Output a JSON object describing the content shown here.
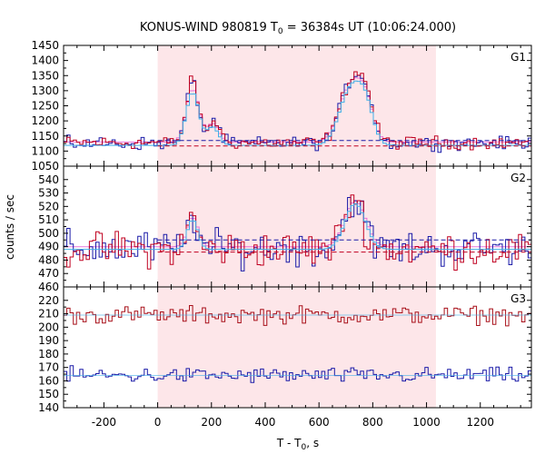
{
  "chart_data": {
    "type": "line",
    "title": "KONUS-WIND 980819 T",
    "title_sub": "0",
    "title_rest": " = 36384s UT (10:06:24.000)",
    "xlabel": "T - T",
    "xlabel_sub": "0",
    "xlabel_rest": ", s",
    "ylabel": "counts / sec",
    "xlim": [
      -350,
      1390
    ],
    "x_ticks": [
      -200,
      0,
      200,
      400,
      600,
      800,
      1000,
      1200
    ],
    "x_tick_labels": [
      "-200",
      "0",
      "200",
      "400",
      "600",
      "800",
      "1000",
      "1200"
    ],
    "highlight_interval": [
      0,
      1035
    ],
    "colors": {
      "data_g12": "#1a1aa8",
      "data_g3": "#a8101a",
      "fit": "#c00020",
      "model": "#e040d0",
      "smooth": "#40b0e8",
      "shade": "#fde6e9"
    },
    "panels": [
      {
        "name": "G1",
        "ylim": [
          1050,
          1450
        ],
        "y_ticks": [
          1050,
          1100,
          1150,
          1200,
          1250,
          1300,
          1350,
          1400,
          1450
        ],
        "y_tick_labels": [
          "1050",
          "1100",
          "1150",
          "1200",
          "1250",
          "1300",
          "1350",
          "1400",
          "1450"
        ],
        "background_levels": [
          1135,
          1117
        ],
        "baseline": 1128,
        "noise": 13,
        "pulses": [
          {
            "center": 130,
            "amplitude": 205,
            "width": 22
          },
          {
            "center": 210,
            "amplitude": 75,
            "width": 20
          },
          {
            "center": 720,
            "amplitude": 200,
            "width": 40
          },
          {
            "center": 775,
            "amplitude": 120,
            "width": 28
          }
        ],
        "fit_pulses": [
          {
            "center": 130,
            "amplitude": 175,
            "width": 24
          },
          {
            "center": 205,
            "amplitude": 60,
            "width": 22
          },
          {
            "center": 720,
            "amplitude": 190,
            "width": 42
          },
          {
            "center": 775,
            "amplitude": 95,
            "width": 28
          }
        ]
      },
      {
        "name": "G2",
        "ylim": [
          460,
          550
        ],
        "y_ticks": [
          460,
          470,
          480,
          490,
          500,
          510,
          520,
          530,
          540
        ],
        "y_tick_labels": [
          "460",
          "470",
          "480",
          "490",
          "500",
          "510",
          "520",
          "530",
          "540"
        ],
        "background_levels": [
          495,
          486
        ],
        "baseline": 488,
        "noise": 8,
        "pulses": [
          {
            "center": 130,
            "amplitude": 25,
            "width": 18
          },
          {
            "center": 730,
            "amplitude": 38,
            "width": 35
          }
        ],
        "fit_pulses": [
          {
            "center": 130,
            "amplitude": 22,
            "width": 20
          },
          {
            "center": 735,
            "amplitude": 34,
            "width": 38
          }
        ]
      },
      {
        "name": "G3",
        "ylim": [
          140,
          230
        ],
        "y_ticks": [
          140,
          150,
          160,
          170,
          180,
          190,
          200,
          210,
          220
        ],
        "y_tick_labels": [
          "140",
          "150",
          "160",
          "170",
          "180",
          "190",
          "200",
          "210",
          "220"
        ],
        "background_levels": [],
        "series": [
          {
            "level": 209,
            "noise": 4,
            "color_key": "data_g3"
          },
          {
            "level": 164,
            "noise": 3.5,
            "color_key": "data_g12"
          }
        ]
      }
    ],
    "bin_width": 12
  }
}
